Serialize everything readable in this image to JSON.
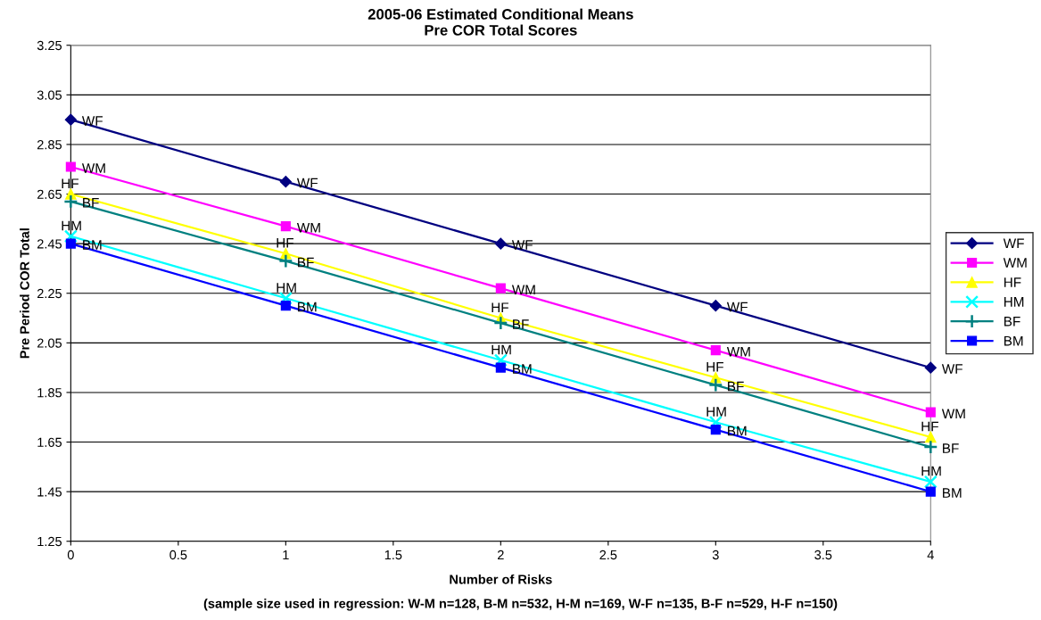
{
  "chart_data": {
    "type": "line",
    "title": "2005-06 Estimated Conditional Means\nPre COR Total Scores",
    "xlabel": "Number of Risks",
    "ylabel": "Pre Period COR Total",
    "x": [
      0,
      1,
      2,
      3,
      4
    ],
    "series": [
      {
        "name": "WF",
        "color": "#000080",
        "marker": "diamond",
        "values": [
          2.95,
          2.7,
          2.45,
          2.2,
          1.95
        ]
      },
      {
        "name": "WM",
        "color": "#ff00ff",
        "marker": "square",
        "values": [
          2.76,
          2.52,
          2.27,
          2.02,
          1.77
        ]
      },
      {
        "name": "HF",
        "color": "#ffff00",
        "marker": "triangle",
        "values": [
          2.65,
          2.41,
          2.15,
          1.91,
          1.67
        ]
      },
      {
        "name": "HM",
        "color": "#00ffff",
        "marker": "cross",
        "values": [
          2.48,
          2.23,
          1.98,
          1.73,
          1.49
        ]
      },
      {
        "name": "BF",
        "color": "#008080",
        "marker": "plus",
        "values": [
          2.62,
          2.38,
          2.13,
          1.88,
          1.63
        ]
      },
      {
        "name": "BM",
        "color": "#0000ff",
        "marker": "square",
        "values": [
          2.45,
          2.2,
          1.95,
          1.7,
          1.45
        ]
      }
    ],
    "xlim": [
      0,
      4
    ],
    "xticks": [
      0,
      0.5,
      1,
      1.5,
      2,
      2.5,
      3,
      3.5,
      4
    ],
    "ylim": [
      1.25,
      3.25
    ],
    "yticks": [
      {
        "value": 1.25,
        "label": "1.25"
      },
      {
        "value": 1.45,
        "label": "1.45"
      },
      {
        "value": 1.65,
        "label": "1.65"
      },
      {
        "value": 1.85,
        "label": "1.85"
      },
      {
        "value": 2.05,
        "label": "2.05"
      },
      {
        "value": 2.25,
        "label": "2.25"
      },
      {
        "value": 2.45,
        "label": "2.45"
      },
      {
        "value": 2.65,
        "label": "2.65"
      },
      {
        "value": 2.85,
        "label": "2.85"
      },
      {
        "value": 3.05,
        "label": "3.05"
      },
      {
        "value": 3.25,
        "label": "3.25"
      }
    ],
    "grid": "y",
    "legend": "right",
    "line_style": "solid",
    "annotations": [
      "(sample size used in regression: W-M n=128, B-M n=532, H-M n=169, W-F n=135, B-F n=529, H-F n=150)",
      {
        "text": "WF",
        "x": 0,
        "y": 2.95
      },
      {
        "text": "WF",
        "x": 1,
        "y": 2.7
      },
      {
        "text": "WF",
        "x": 2,
        "y": 2.45
      },
      {
        "text": "WF",
        "x": 3,
        "y": 2.2
      },
      {
        "text": "WF",
        "x": 4,
        "y": 1.95
      },
      {
        "text": "WM",
        "x": 0,
        "y": 2.76
      },
      {
        "text": "WM",
        "x": 1,
        "y": 2.52
      },
      {
        "text": "WM",
        "x": 2,
        "y": 2.27
      },
      {
        "text": "WM",
        "x": 3,
        "y": 2.02
      },
      {
        "text": "WM",
        "x": 4,
        "y": 1.77
      },
      {
        "text": "HF",
        "x": 0,
        "y": 2.65
      },
      {
        "text": "HF",
        "x": 1,
        "y": 2.41
      },
      {
        "text": "HF",
        "x": 2,
        "y": 2.15
      },
      {
        "text": "HF",
        "x": 3,
        "y": 1.91
      },
      {
        "text": "HF",
        "x": 4,
        "y": 1.67
      },
      {
        "text": "HM",
        "x": 0,
        "y": 2.48
      },
      {
        "text": "HM",
        "x": 1,
        "y": 2.23
      },
      {
        "text": "HM",
        "x": 2,
        "y": 1.98
      },
      {
        "text": "HM",
        "x": 3,
        "y": 1.73
      },
      {
        "text": "HM",
        "x": 4,
        "y": 1.49
      },
      {
        "text": "BF",
        "x": 0,
        "y": 2.62
      },
      {
        "text": "BF",
        "x": 1,
        "y": 2.38
      },
      {
        "text": "BF",
        "x": 2,
        "y": 2.13
      },
      {
        "text": "BF",
        "x": 3,
        "y": 1.88
      },
      {
        "text": "BF",
        "x": 4,
        "y": 1.63
      },
      {
        "text": "BM",
        "x": 0,
        "y": 2.45
      },
      {
        "text": "BM",
        "x": 1,
        "y": 2.2
      },
      {
        "text": "BM",
        "x": 2,
        "y": 1.95
      },
      {
        "text": "BM",
        "x": 3,
        "y": 1.7
      },
      {
        "text": "BM",
        "x": 4,
        "y": 1.45
      }
    ]
  }
}
